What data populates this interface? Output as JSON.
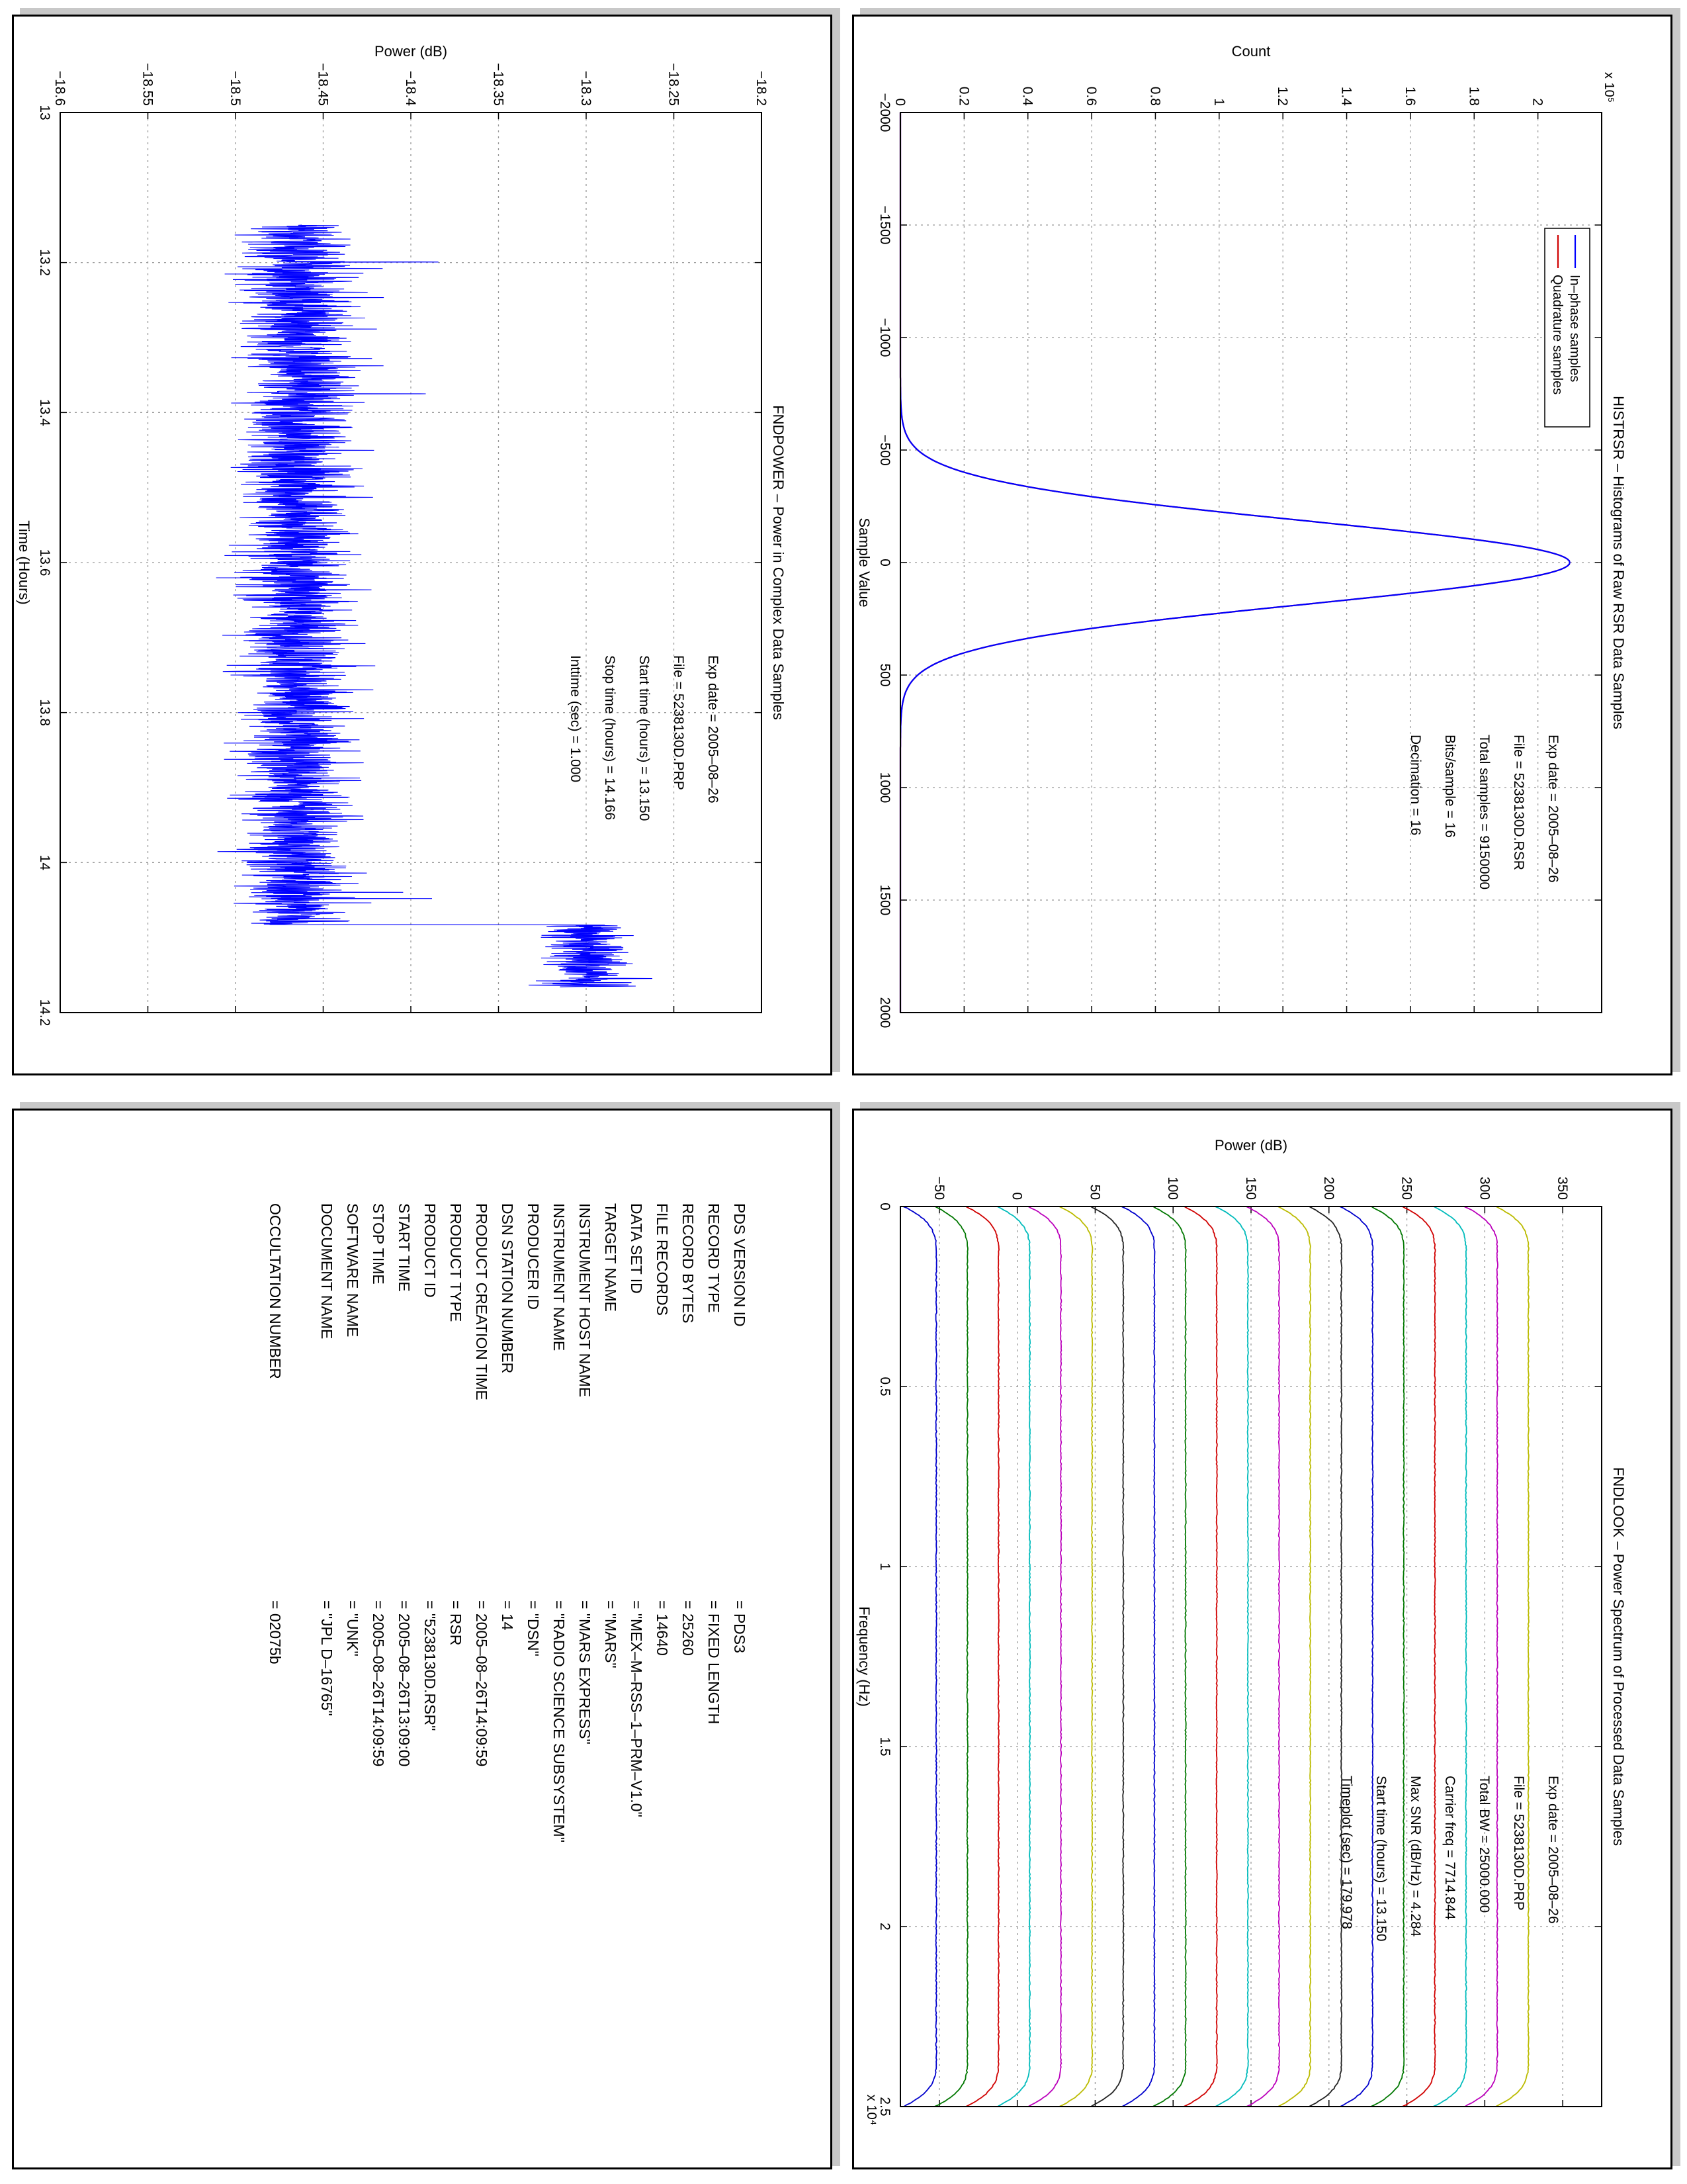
{
  "panels": {
    "histrsr": {
      "title": "HISTRSR – Histograms of Raw RSR Data Samples",
      "xlabel": "Sample Value",
      "ylabel": "Count",
      "exponent": "x 10⁵",
      "legend": [
        "In–phase samples",
        "Quadrature samples"
      ],
      "info": [
        "Exp date = 2005–08–26",
        "File = 5238130D.RSR",
        "Total samples = 9150000",
        "Bits/sample  =      16",
        "Decimation  =      16"
      ]
    },
    "fndpower": {
      "title": "FNDPOWER – Power in Complex Data Samples",
      "xlabel": "Time (Hours)",
      "ylabel": "Power (dB)",
      "info": [
        "Exp date = 2005–08–26",
        "File = 5238130D.PRP",
        "Start time (hours) = 13.150",
        "Stop time (hours) = 14.166",
        "Inttime (sec) =    1.000"
      ]
    },
    "fndlook": {
      "title": "FNDLOOK – Power Spectrum of Processed Data Samples",
      "xlabel": "Frequency (Hz)",
      "ylabel": "Power (dB)",
      "exponent": "x 10⁴",
      "info": [
        "Exp date = 2005–08–26",
        "File = 5238130D.PRP",
        "Total BW =    25000.000",
        "Carrier freq =   7714.844",
        "Max SNR (dB/Hz) =    4.284",
        "Start time (hours) =  13.150",
        "Timeplot (sec) =  179.978"
      ]
    },
    "pds": {
      "rows": [
        {
          "key": "PDS VERSION ID",
          "value": "=  PDS3"
        },
        {
          "key": "RECORD TYPE",
          "value": "=  FIXED LENGTH"
        },
        {
          "key": "RECORD BYTES",
          "value": "=  25260"
        },
        {
          "key": "FILE RECORDS",
          "value": "=  14640"
        },
        {
          "key": "DATA SET ID",
          "value": "=  \"MEX–M–RSS–1–PRM–V1.0\""
        },
        {
          "key": "TARGET NAME",
          "value": "=  \"MARS\""
        },
        {
          "key": "INSTRUMENT HOST NAME",
          "value": "=  \"MARS EXPRESS\""
        },
        {
          "key": "INSTRUMENT NAME",
          "value": "=  \"RADIO SCIENCE SUBSYSTEM\""
        },
        {
          "key": "PRODUCER ID",
          "value": "=  \"DSN\""
        },
        {
          "key": "DSN STATION NUMBER",
          "value": "=  14"
        },
        {
          "key": "PRODUCT CREATION TIME",
          "value": "=  2005–08–26T14:09:59"
        },
        {
          "key": "PRODUCT TYPE",
          "value": "=  RSR"
        },
        {
          "key": "PRODUCT ID",
          "value": "=  \"5238130D.RSR\""
        },
        {
          "key": "START TIME",
          "value": "=  2005–08–26T13:09:00"
        },
        {
          "key": "STOP TIME",
          "value": "=  2005–08–26T14:09:59"
        },
        {
          "key": "SOFTWARE NAME",
          "value": "=  \"UNK\""
        },
        {
          "key": "DOCUMENT NAME",
          "value": "=  \"JPL D–16765\""
        },
        {
          "key": "OCCULTATION NUMBER",
          "value": "=  02075b",
          "gap": true
        }
      ]
    }
  },
  "chart_data": [
    {
      "type": "line",
      "title": "HISTRSR – Histograms of Raw RSR Data Samples",
      "xlabel": "Sample Value",
      "ylabel": "Count",
      "xlim": [
        -2000,
        2000
      ],
      "ylim": [
        0,
        220000
      ],
      "xticks": [
        -2000,
        -1500,
        -1000,
        -500,
        0,
        500,
        1000,
        1500,
        2000
      ],
      "yticks": [
        0,
        0.2,
        0.4,
        0.6,
        0.8,
        1,
        1.2,
        1.4,
        1.6,
        1.8,
        2
      ],
      "grid": true,
      "legend_position": "top-left",
      "series": [
        {
          "name": "In–phase samples",
          "color": "#0000ff",
          "x": [
            -2000,
            -600,
            -500,
            -400,
            -300,
            -200,
            -100,
            0,
            100,
            200,
            300,
            400,
            500,
            600,
            2000
          ],
          "y": [
            0,
            1500,
            6700,
            25000,
            63000,
            120000,
            183000,
            210000,
            183000,
            120000,
            63000,
            25000,
            6700,
            1500,
            0
          ]
        },
        {
          "name": "Quadrature samples",
          "color": "#d00000",
          "x": [
            -2000,
            -600,
            -500,
            -400,
            -300,
            -200,
            -100,
            0,
            100,
            200,
            300,
            400,
            500,
            600,
            2000
          ],
          "y": [
            0,
            1500,
            6700,
            25000,
            63000,
            120000,
            183000,
            210000,
            183000,
            120000,
            63000,
            25000,
            6700,
            1500,
            0
          ]
        }
      ]
    },
    {
      "type": "line",
      "title": "FNDPOWER – Power in Complex Data Samples",
      "xlabel": "Time (Hours)",
      "ylabel": "Power (dB)",
      "xlim": [
        13,
        14.2
      ],
      "ylim": [
        -18.6,
        -18.2
      ],
      "xticks": [
        13,
        13.2,
        13.4,
        13.6,
        13.8,
        14,
        14.2
      ],
      "yticks": [
        -18.6,
        -18.55,
        -18.5,
        -18.45,
        -18.4,
        -18.35,
        -18.3,
        -18.25,
        -18.2
      ],
      "grid": true,
      "series": [
        {
          "color": "#0000ff",
          "segments": [
            {
              "x_start": 13.15,
              "x_end": 14.083,
              "mean": -18.465,
              "spread": 0.022
            },
            {
              "x_start": 14.083,
              "x_end": 14.166,
              "mean": -18.3,
              "spread": 0.018
            }
          ]
        }
      ]
    },
    {
      "type": "line",
      "title": "FNDLOOK – Power Spectrum of Processed Data Samples",
      "xlabel": "Frequency (Hz)",
      "ylabel": "Power (dB)",
      "xlim": [
        0,
        25000
      ],
      "ylim": [
        -75,
        375
      ],
      "xticks": [
        0,
        0.5,
        1,
        1.5,
        2,
        2.5
      ],
      "yticks": [
        -50,
        0,
        50,
        100,
        150,
        200,
        250,
        300,
        350
      ],
      "grid": true,
      "curve_shape": {
        "edge_low_hz": 0,
        "rolloff_hz": 1300,
        "edge_high_hz": 25000
      },
      "series": [
        {
          "color": "#0000cc",
          "floor": -73,
          "level": -52
        },
        {
          "color": "#007700",
          "floor": -53,
          "level": -32
        },
        {
          "color": "#d00000",
          "floor": -33,
          "level": -12
        },
        {
          "color": "#00bbbb",
          "floor": -13,
          "level": 8
        },
        {
          "color": "#bb00bb",
          "floor": 7,
          "level": 28
        },
        {
          "color": "#bbbb00",
          "floor": 27,
          "level": 48
        },
        {
          "color": "#222222",
          "floor": 47,
          "level": 68
        },
        {
          "color": "#0000cc",
          "floor": 67,
          "level": 88
        },
        {
          "color": "#007700",
          "floor": 87,
          "level": 108
        },
        {
          "color": "#d00000",
          "floor": 107,
          "level": 128
        },
        {
          "color": "#00bbbb",
          "floor": 127,
          "level": 148
        },
        {
          "color": "#bb00bb",
          "floor": 147,
          "level": 168
        },
        {
          "color": "#bbbb00",
          "floor": 167,
          "level": 188
        },
        {
          "color": "#222222",
          "floor": 187,
          "level": 208
        },
        {
          "color": "#0000cc",
          "floor": 207,
          "level": 228
        },
        {
          "color": "#007700",
          "floor": 227,
          "level": 248
        },
        {
          "color": "#d00000",
          "floor": 247,
          "level": 268
        },
        {
          "color": "#00bbbb",
          "floor": 267,
          "level": 288
        },
        {
          "color": "#bb00bb",
          "floor": 287,
          "level": 308
        },
        {
          "color": "#bbbb00",
          "floor": 307,
          "level": 328
        }
      ]
    }
  ]
}
